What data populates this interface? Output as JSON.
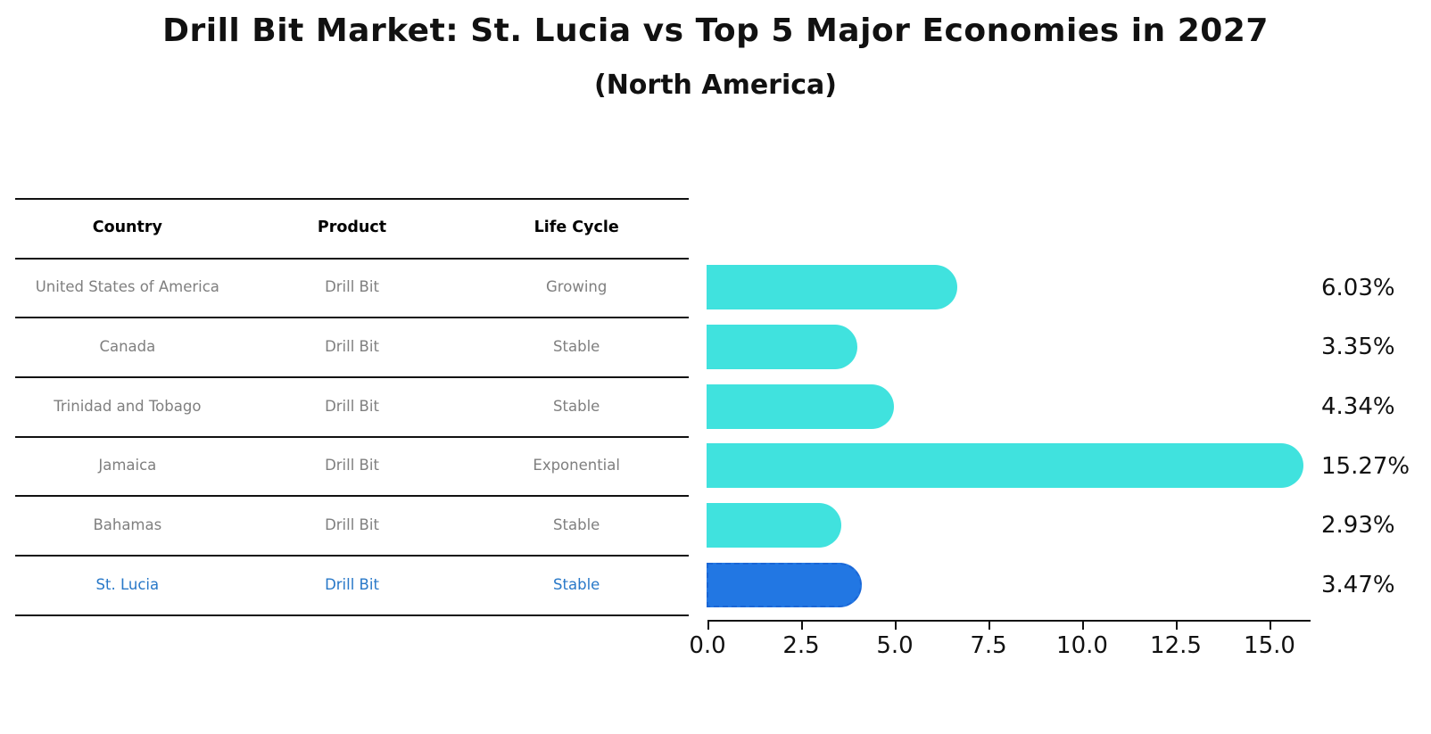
{
  "title": "Drill Bit Market: St. Lucia vs Top 5 Major Economies in 2027",
  "subtitle": "(North America)",
  "table": {
    "headers": [
      "Country",
      "Product",
      "Life Cycle"
    ],
    "rows": [
      {
        "country": "United States of America",
        "product": "Drill Bit",
        "life_cycle": "Growing",
        "highlight": false
      },
      {
        "country": "Canada",
        "product": "Drill Bit",
        "life_cycle": "Stable",
        "highlight": false
      },
      {
        "country": "Trinidad and Tobago",
        "product": "Drill Bit",
        "life_cycle": "Stable",
        "highlight": false
      },
      {
        "country": "Jamaica",
        "product": "Drill Bit",
        "life_cycle": "Exponential",
        "highlight": false
      },
      {
        "country": "Bahamas",
        "product": "Drill Bit",
        "life_cycle": "Stable",
        "highlight": false
      },
      {
        "country": "St. Lucia",
        "product": "Drill Bit",
        "life_cycle": "Stable",
        "highlight": true
      }
    ]
  },
  "chart_data": {
    "type": "bar",
    "orientation": "horizontal",
    "title": "Drill Bit Market: St. Lucia vs Top 5 Major Economies in 2027",
    "subtitle": "(North America)",
    "categories": [
      "United States of America",
      "Canada",
      "Trinidad and Tobago",
      "Jamaica",
      "Bahamas",
      "St. Lucia"
    ],
    "values": [
      6.03,
      3.35,
      4.34,
      15.27,
      2.93,
      3.47
    ],
    "value_labels": [
      "6.03%",
      "3.35%",
      "4.34%",
      "15.27%",
      "2.93%",
      "3.47%"
    ],
    "x_tick_labels": [
      "0.0",
      "2.5",
      "5.0",
      "7.5",
      "10.0",
      "12.5",
      "15.0"
    ],
    "x_tick_values": [
      0,
      2.5,
      5,
      7.5,
      10,
      12.5,
      15
    ],
    "xlim": [
      0,
      16.1
    ],
    "grid": false,
    "legend": false,
    "highlight_index": 5
  },
  "colors": {
    "bar": "#40e2de",
    "highlight_bar": "#2277e3",
    "highlight_bar_border": "#1a66d6",
    "highlight_text": "#2878c8",
    "table_text": "#7f7f7f",
    "header_text": "#000000",
    "axis": "#111111"
  }
}
